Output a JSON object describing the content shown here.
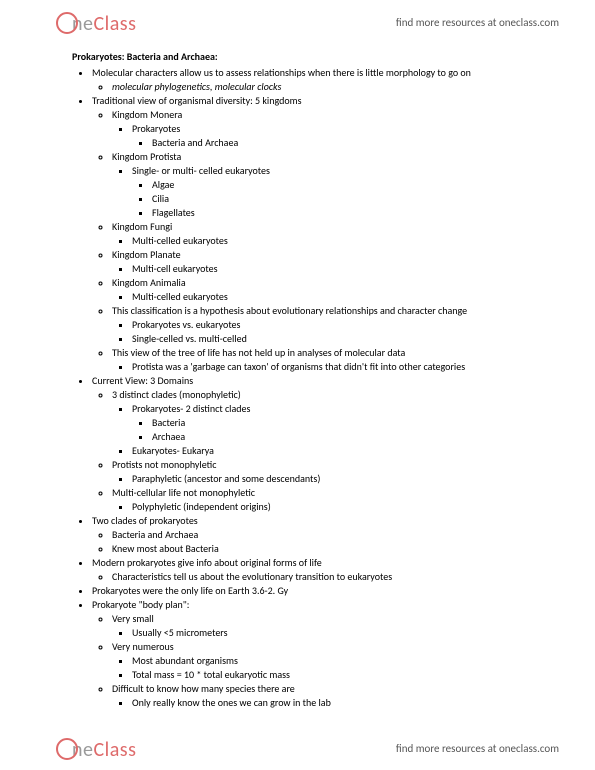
{
  "brand": {
    "part1": "ne",
    "part2": "Class"
  },
  "header_link": "find more resources at oneclass.com",
  "footer_link": "find more resources at oneclass.com",
  "doc": {
    "title": "Prokaryotes: Bacteria and Archaea:",
    "b1": "Molecular characters allow us to assess relationships when there is little morphology to go on",
    "b1a": "molecular phylogenetics, molecular clocks",
    "b2": "Traditional view of organismal diversity: 5 kingdoms",
    "b2a": "Kingdom Monera",
    "b2a1": "Prokaryotes",
    "b2a1a": "Bacteria and Archaea",
    "b2b": "Kingdom Protista",
    "b2b1": "Single- or multi- celled eukaryotes",
    "b2b1a": "Algae",
    "b2b1b": "Cilia",
    "b2b1c": "Flagellates",
    "b2c": "Kingdom Fungi",
    "b2c1": "Multi-celled eukaryotes",
    "b2d": "Kingdom Planate",
    "b2d1": "Multi-cell eukaryotes",
    "b2e": "Kingdom Animalia",
    "b2e1": "Multi-celled eukaryotes",
    "b2f": "This classification is a hypothesis about evolutionary relationships and character change",
    "b2f1": "Prokaryotes vs. eukaryotes",
    "b2f2": "Single-celled vs. multi-celled",
    "b2g": "This view of the tree of life has not held up in analyses of molecular data",
    "b2g1": "Protista was a 'garbage can taxon' of organisms that didn't fit into other categories",
    "b3": "Current View: 3 Domains",
    "b3a": "3 distinct clades (monophyletic)",
    "b3a1": "Prokaryotes- 2 distinct clades",
    "b3a1a": "Bacteria",
    "b3a1b": "Archaea",
    "b3a2": "Eukaryotes- Eukarya",
    "b3b": "Protists not monophyletic",
    "b3b1": "Paraphyletic (ancestor and some descendants)",
    "b3c": "Multi-cellular life not monophyletic",
    "b3c1": "Polyphyletic (independent origins)",
    "b4": "Two clades of prokaryotes",
    "b4a": "Bacteria and Archaea",
    "b4b": "Knew most about Bacteria",
    "b5": "Modern prokaryotes give info about original forms of life",
    "b5a": "Characteristics tell us about the evolutionary transition to eukaryotes",
    "b6": "Prokaryotes were the only life on Earth 3.6-2. Gy",
    "b7": "Prokaryote \"body plan\":",
    "b7a": "Very small",
    "b7a1": "Usually <5 micrometers",
    "b7b": "Very numerous",
    "b7b1": "Most abundant organisms",
    "b7b2": "Total mass = 10 * total eukaryotic mass",
    "b7c": "Difficult to know how many species there are",
    "b7c1": "Only really know the ones we can grow in the lab"
  }
}
